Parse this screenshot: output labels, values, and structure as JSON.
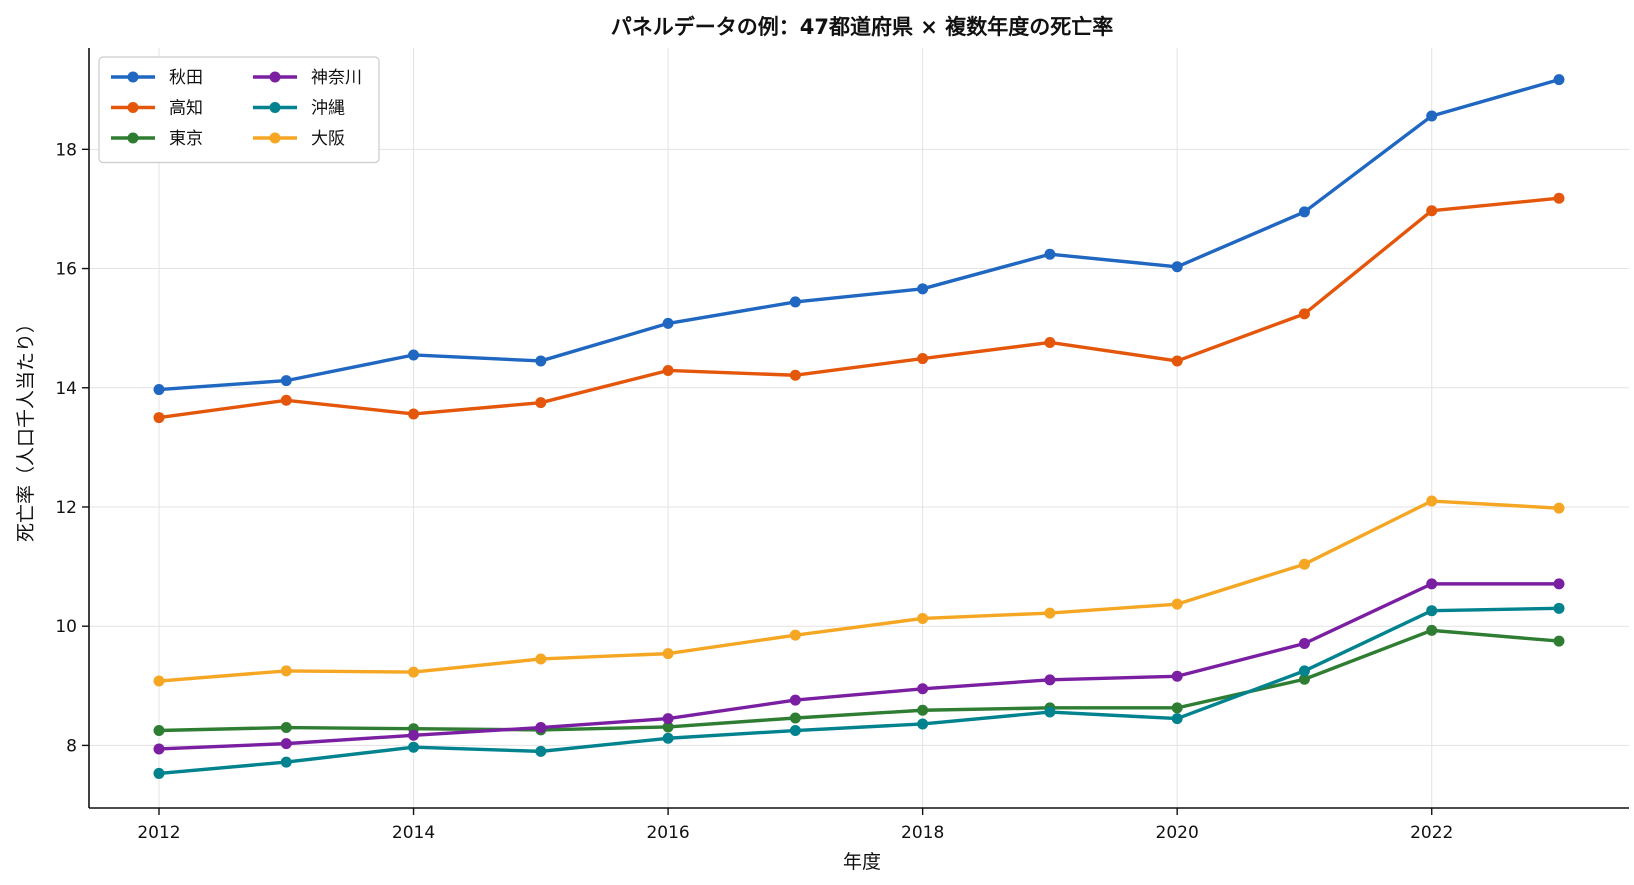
{
  "chart_data": {
    "type": "line",
    "title": "パネルデータの例：47都道府県 × 複数年度の死亡率",
    "xlabel": "年度",
    "ylabel": "死亡率（人口千人当たり）",
    "xlim": [
      2011.45,
      2023.55
    ],
    "ylim": [
      6.95,
      19.7
    ],
    "xticks": [
      2012,
      2014,
      2016,
      2018,
      2020,
      2022
    ],
    "yticks": [
      8,
      10,
      12,
      14,
      16,
      18
    ],
    "grid": true,
    "legend_position": "top-left",
    "legend_columns": 2,
    "x": [
      2012,
      2013,
      2014,
      2015,
      2016,
      2017,
      2018,
      2019,
      2020,
      2021,
      2022,
      2023
    ],
    "series": [
      {
        "name": "秋田",
        "color": "#1f67c0",
        "values": [
          13.97,
          14.12,
          14.55,
          14.45,
          15.08,
          15.44,
          15.66,
          16.24,
          16.03,
          16.95,
          18.56,
          19.17
        ]
      },
      {
        "name": "高知",
        "color": "#e4570b",
        "values": [
          13.5,
          13.79,
          13.56,
          13.75,
          14.29,
          14.21,
          14.49,
          14.76,
          14.45,
          15.24,
          16.97,
          17.18
        ]
      },
      {
        "name": "東京",
        "color": "#2e7d32",
        "values": [
          8.25,
          8.3,
          8.28,
          8.26,
          8.31,
          8.46,
          8.59,
          8.63,
          8.63,
          9.11,
          9.93,
          9.75
        ]
      },
      {
        "name": "神奈川",
        "color": "#7b1fa2",
        "values": [
          7.94,
          8.03,
          8.17,
          8.3,
          8.45,
          8.76,
          8.95,
          9.1,
          9.16,
          9.71,
          10.71,
          10.71
        ]
      },
      {
        "name": "沖縄",
        "color": "#00838f",
        "values": [
          7.53,
          7.72,
          7.97,
          7.9,
          8.12,
          8.25,
          8.36,
          8.56,
          8.45,
          9.25,
          10.26,
          10.3
        ]
      },
      {
        "name": "大阪",
        "color": "#f5a623",
        "values": [
          9.08,
          9.25,
          9.23,
          9.45,
          9.54,
          9.85,
          10.13,
          10.22,
          10.37,
          11.04,
          12.1,
          11.98
        ]
      }
    ]
  }
}
